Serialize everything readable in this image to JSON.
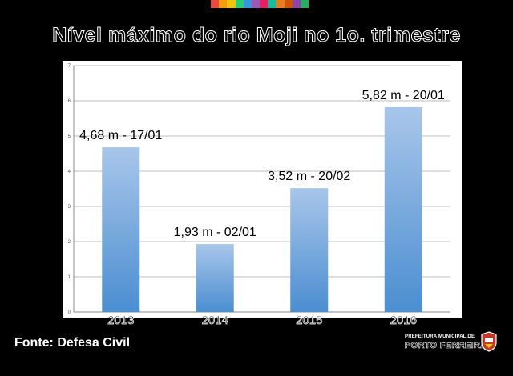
{
  "title": "Nível máximo do rio Moji no 1o. trimestre",
  "source": "Fonte: Defesa Civil",
  "logo": {
    "line1": "PREFEITURA MUNICIPAL DE",
    "line2": "PORTO FERREIRA"
  },
  "colors": {
    "background": "#000000",
    "bar_top": "#a8c6ea",
    "bar_bottom": "#4b8ed0",
    "grid": "#bdbdbd",
    "stripe": [
      "#e84b3c",
      "#f39c12",
      "#f1c40f",
      "#2ecc71",
      "#3498db",
      "#9b59b6",
      "#e91e63",
      "#1abc9c",
      "#e67e22",
      "#d35400",
      "#8e44ad",
      "#27ae60"
    ]
  },
  "chart_data": {
    "type": "bar",
    "title": "Nível máximo do rio Moji no 1o. trimestre",
    "categories": [
      "2013",
      "2014",
      "2015",
      "2016"
    ],
    "values": [
      4.68,
      1.93,
      3.52,
      5.82
    ],
    "data_labels": [
      "4,68 m - 17/01",
      "1,93 m - 02/01",
      "3,52 m - 20/02",
      "5,82 m - 20/01"
    ],
    "y_ticks": [
      "0",
      "1",
      "2",
      "3",
      "4",
      "5",
      "6",
      "7"
    ],
    "ylim": [
      0,
      7
    ],
    "xlabel": "",
    "ylabel": "",
    "grid": true,
    "legend": "none"
  }
}
